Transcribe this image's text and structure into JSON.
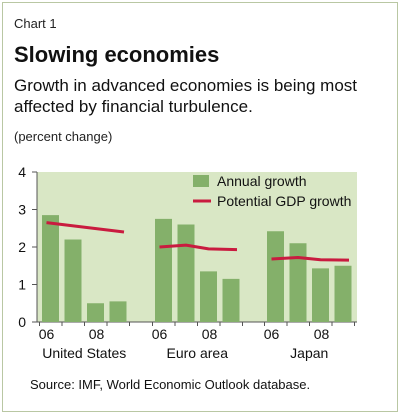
{
  "header": {
    "chart_label": "Chart 1",
    "title": "Slowing economies",
    "subtitle": "Growth in advanced economies is being most affected by financial turbulence.",
    "unit": "(percent change)"
  },
  "footer": {
    "source": "Source: IMF, World Economic Outlook database."
  },
  "colors": {
    "plot_background": "#d9e7c5",
    "bar": "#84b06a",
    "potential_line": "#c91b3f",
    "axis": "#555555"
  },
  "chart_data": {
    "type": "bar",
    "ylim": [
      0,
      4
    ],
    "yticks": [
      "0",
      "1",
      "2",
      "3",
      "4"
    ],
    "grid": false,
    "legend_position": "top-right",
    "groups": [
      {
        "name": "United States",
        "x_ticks": [
          "06",
          "08"
        ],
        "annual_growth": [
          2.85,
          2.2,
          0.5,
          0.55
        ],
        "potential_gdp_growth": [
          2.65,
          2.4
        ]
      },
      {
        "name": "Euro area",
        "x_ticks": [
          "06",
          "08"
        ],
        "annual_growth": [
          2.75,
          2.6,
          1.35,
          1.15
        ],
        "potential_gdp_growth": [
          2.0,
          2.05,
          1.95,
          1.93
        ]
      },
      {
        "name": "Japan",
        "x_ticks": [
          "06",
          "08"
        ],
        "annual_growth": [
          2.42,
          2.1,
          1.43,
          1.5
        ],
        "potential_gdp_growth": [
          1.68,
          1.72,
          1.66,
          1.65
        ]
      }
    ],
    "series": [
      {
        "name": "Annual growth",
        "kind": "bar"
      },
      {
        "name": "Potential GDP growth",
        "kind": "line"
      }
    ]
  }
}
